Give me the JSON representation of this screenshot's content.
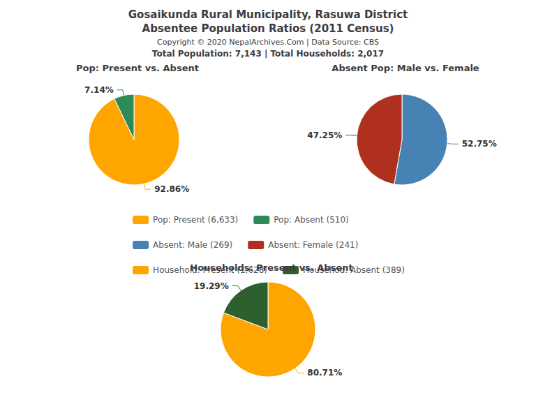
{
  "title": "Gosaikunda Rural Municipality, Rasuwa District",
  "subtitle": "Absentee Population Ratios (2011 Census)",
  "annotations": [
    "Copyright © 2020 NepalArchives.Com | Data Source: CBS",
    "Total Population: 7,143 | Total Households: 2,017"
  ],
  "legend": "center",
  "chart_data": [
    {
      "type": "pie",
      "title": "Pop: Present vs. Absent",
      "categories": [
        "Pop: Present (6,633)",
        "Pop: Absent (510)"
      ],
      "values": [
        92.86,
        7.14
      ],
      "value_labels": [
        "92.86%",
        "7.14%"
      ],
      "colors": [
        "#FFA500",
        "#2E8B57"
      ],
      "data_labels": true
    },
    {
      "type": "pie",
      "title": "Absent Pop: Male vs. Female",
      "categories": [
        "Absent: Male (269)",
        "Absent: Female (241)"
      ],
      "values": [
        52.75,
        47.25
      ],
      "value_labels": [
        "52.75%",
        "47.25%"
      ],
      "colors": [
        "#4682B4",
        "#B03020"
      ],
      "data_labels": true
    },
    {
      "type": "pie",
      "title": "Households: Present vs. Absent",
      "categories": [
        "Household: Present (1,628)",
        "Househod: Absent (389)"
      ],
      "values": [
        80.71,
        19.29
      ],
      "value_labels": [
        "80.71%",
        "19.29%"
      ],
      "colors": [
        "#FFA500",
        "#2E5F2E"
      ],
      "data_labels": true
    }
  ]
}
